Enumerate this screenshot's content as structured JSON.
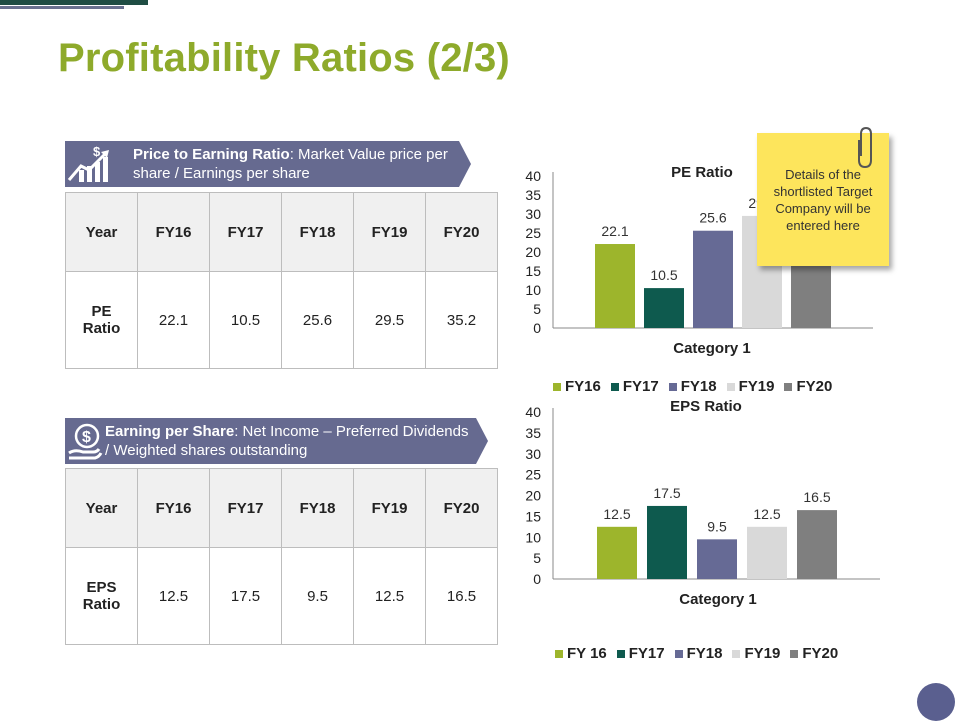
{
  "slide": {
    "title": "Profitability Ratios (2/3)"
  },
  "colors": {
    "title_green": "#8eaa2b",
    "banner_purple": "#666a90",
    "fy16": "#9db52c",
    "fy17": "#0e5a4e",
    "fy18": "#666a95",
    "fy19": "#d9d9d9",
    "fy20": "#7f7f7f",
    "sticky": "#fde55c"
  },
  "pe_section": {
    "icon": "growth-chart-icon",
    "banner_bold": "Price to Earning Ratio",
    "banner_rest": ": Market Value price per share / Earnings per share",
    "table": {
      "headers": [
        "Year",
        "FY16",
        "FY17",
        "FY18",
        "FY19",
        "FY20"
      ],
      "row_label_1": "PE",
      "row_label_2": "Ratio",
      "values": [
        "22.1",
        "10.5",
        "25.6",
        "29.5",
        "35.2"
      ]
    }
  },
  "eps_section": {
    "icon": "money-hand-icon",
    "banner_bold": "Earning per Share",
    "banner_rest": ": Net Income – Preferred Dividends / Weighted shares outstanding",
    "table": {
      "headers": [
        "Year",
        "FY16",
        "FY17",
        "FY18",
        "FY19",
        "FY20"
      ],
      "row_label_1": "EPS",
      "row_label_2": "Ratio",
      "values": [
        "12.5",
        "17.5",
        "9.5",
        "12.5",
        "16.5"
      ]
    }
  },
  "chart_data": [
    {
      "type": "bar",
      "title": "PE Ratio",
      "categories": [
        "Category 1"
      ],
      "xlabel": "Category 1",
      "ylim": [
        0,
        40
      ],
      "yticks": [
        0,
        5,
        10,
        15,
        20,
        25,
        30,
        35,
        40
      ],
      "grid": false,
      "legend_position": "bottom",
      "series": [
        {
          "name": "FY16",
          "values": [
            22.1
          ]
        },
        {
          "name": "FY17",
          "values": [
            10.5
          ]
        },
        {
          "name": "FY18",
          "values": [
            25.6
          ]
        },
        {
          "name": "FY19",
          "values": [
            29.5
          ]
        },
        {
          "name": "FY20",
          "values": [
            35.2
          ]
        }
      ],
      "data_labels": [
        "22.1",
        "10.5",
        "25.6",
        "29.5",
        ""
      ]
    },
    {
      "type": "bar",
      "title": "EPS Ratio",
      "categories": [
        "Category 1"
      ],
      "xlabel": "Category 1",
      "ylim": [
        0,
        40
      ],
      "yticks": [
        0,
        5,
        10,
        15,
        20,
        25,
        30,
        35,
        40
      ],
      "grid": false,
      "legend_position": "bottom",
      "series": [
        {
          "name": "FY 16",
          "values": [
            12.5
          ]
        },
        {
          "name": "FY17",
          "values": [
            17.5
          ]
        },
        {
          "name": "FY18",
          "values": [
            9.5
          ]
        },
        {
          "name": "FY19",
          "values": [
            12.5
          ]
        },
        {
          "name": "FY20",
          "values": [
            16.5
          ]
        }
      ],
      "data_labels": [
        "12.5",
        "17.5",
        "9.5",
        "12.5",
        "16.5"
      ]
    }
  ],
  "sticky_note": {
    "text": "Details of the shortlisted Target Company will be entered here"
  }
}
